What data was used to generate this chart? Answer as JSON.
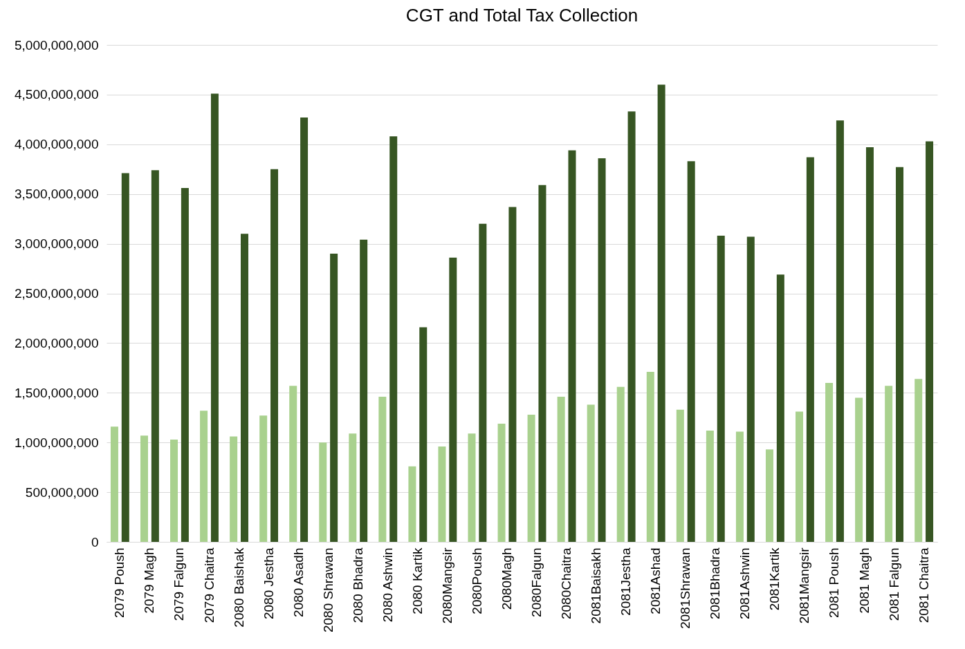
{
  "chart_data": {
    "type": "bar",
    "title": "CGT and Total Tax Collection",
    "categories": [
      "2079 Poush",
      "2079 Magh",
      "2079 Falgun",
      "2079 Chaitra",
      "2080 Baishak",
      "2080 Jestha",
      "2080 Asadh",
      "2080 Shrawan",
      "2080 Bhadra",
      "2080 Ashwin",
      "2080 Kartik",
      "2080Mangsir",
      "2080Poush",
      "2080Magh",
      "2080Falgun",
      "2080Chaitra",
      "2081Baisakh",
      "2081Jestha",
      "2081Ashad",
      "2081Shrawan",
      "2081Bhadra",
      "2081Ashwin",
      "2081Kartik",
      "2081Mangsir",
      "2081 Poush",
      "2081 Magh",
      "2081 Falgun",
      "2081 Chaitra"
    ],
    "series": [
      {
        "color": "#a9d18e",
        "values": [
          1160000000,
          1070000000,
          1030000000,
          1320000000,
          1060000000,
          1270000000,
          1570000000,
          1000000000,
          1090000000,
          1460000000,
          760000000,
          960000000,
          1090000000,
          1190000000,
          1280000000,
          1460000000,
          1380000000,
          1560000000,
          1710000000,
          1330000000,
          1120000000,
          1110000000,
          930000000,
          1310000000,
          1600000000,
          1450000000,
          1570000000,
          1640000000
        ]
      },
      {
        "color": "#375623",
        "values": [
          3710000000,
          3740000000,
          3560000000,
          4510000000,
          3100000000,
          3750000000,
          4270000000,
          2900000000,
          3040000000,
          4080000000,
          2160000000,
          2860000000,
          3200000000,
          3370000000,
          3590000000,
          3940000000,
          3860000000,
          4330000000,
          4600000000,
          3830000000,
          3080000000,
          3070000000,
          2690000000,
          3870000000,
          4240000000,
          3970000000,
          3770000000,
          4030000000
        ]
      }
    ],
    "ylim": [
      0,
      5000000000
    ],
    "yticks": [
      0,
      {
        "value": 500000000,
        "label": "500,000,000"
      },
      {
        "value": 1000000000,
        "label": "1,000,000,000"
      },
      {
        "value": 1500000000,
        "label": "1,500,000,000"
      },
      {
        "value": 2000000000,
        "label": "2,000,000,000"
      },
      {
        "value": 2500000000,
        "label": "2,500,000,000"
      },
      {
        "value": 3000000000,
        "label": "3,000,000,000"
      },
      {
        "value": 3500000000,
        "label": "3,500,000,000"
      },
      {
        "value": 4000000000,
        "label": "4,000,000,000"
      },
      {
        "value": 4500000000,
        "label": "4,500,000,000"
      },
      {
        "value": 5000000000,
        "label": "5,000,000,000"
      }
    ],
    "grid": "y",
    "legend": false
  }
}
